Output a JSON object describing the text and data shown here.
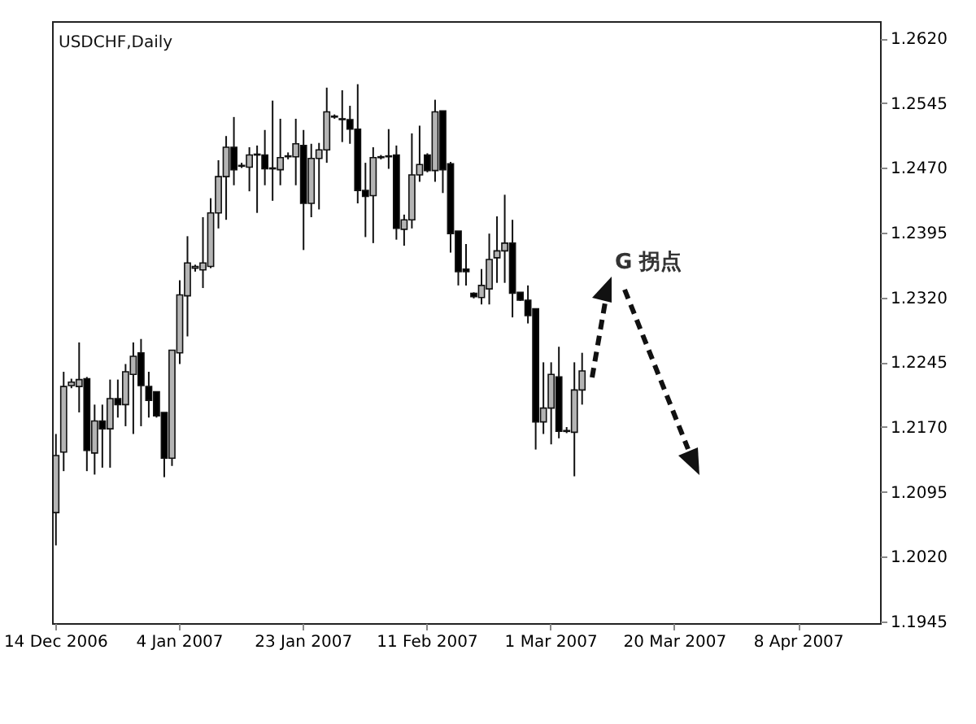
{
  "chart_data": {
    "type": "candlestick",
    "title": "USDCHF,Daily",
    "categories": [
      "14 Dec 2006",
      null,
      null,
      null,
      null,
      null,
      null,
      null,
      null,
      null,
      null,
      null,
      null,
      null,
      null,
      null,
      "4 Jan 2007",
      null,
      null,
      null,
      null,
      null,
      null,
      null,
      null,
      null,
      null,
      null,
      null,
      null,
      null,
      null,
      "23 Jan 2007",
      null,
      null,
      null,
      null,
      null,
      null,
      null,
      null,
      null,
      null,
      null,
      null,
      null,
      null,
      null,
      "11 Feb 2007",
      null,
      null,
      null,
      null,
      null,
      null,
      null,
      null,
      null,
      null,
      null,
      null,
      null,
      null,
      null,
      "1 Mar 2007",
      null,
      null,
      null,
      null,
      null,
      null,
      null,
      null,
      null,
      null,
      null,
      null,
      null,
      null,
      null,
      "20 Mar 2007",
      null,
      null,
      null,
      null,
      null,
      null,
      null,
      null,
      null,
      null,
      null,
      null,
      null,
      null,
      null,
      "8 Apr 2007",
      null,
      null,
      null,
      null,
      null,
      null,
      null,
      null,
      null,
      null
    ],
    "ohlc": [
      [
        1.2071,
        1.2162,
        1.2033,
        1.2137
      ],
      [
        1.2141,
        1.2234,
        1.2119,
        1.2217
      ],
      [
        1.2218,
        1.2226,
        1.2215,
        1.2222
      ],
      [
        1.2217,
        1.2268,
        1.2187,
        1.2225
      ],
      [
        1.2226,
        1.2228,
        1.2119,
        1.2143
      ],
      [
        1.214,
        1.2196,
        1.2115,
        1.2177
      ],
      [
        1.2177,
        1.2196,
        1.2123,
        1.2168
      ],
      [
        1.2168,
        1.2225,
        1.2123,
        1.2203
      ],
      [
        1.2203,
        1.2225,
        1.2181,
        1.2196
      ],
      [
        1.2196,
        1.2243,
        1.2171,
        1.2234
      ],
      [
        1.2231,
        1.2268,
        1.2162,
        1.2252
      ],
      [
        1.2256,
        1.2272,
        1.2171,
        1.2218
      ],
      [
        1.2217,
        1.2234,
        1.2181,
        1.2201
      ],
      [
        1.2211,
        1.2211,
        1.2181,
        1.2183
      ],
      [
        1.2187,
        1.2187,
        1.2112,
        1.2134
      ],
      [
        1.2134,
        1.2259,
        1.2125,
        1.2259
      ],
      [
        1.2256,
        1.234,
        1.2243,
        1.2323
      ],
      [
        1.2322,
        1.2391,
        1.2275,
        1.236
      ],
      [
        1.2354,
        1.2358,
        1.235,
        1.2356
      ],
      [
        1.2352,
        1.2413,
        1.2331,
        1.236
      ],
      [
        1.2356,
        1.2435,
        1.2354,
        1.2418
      ],
      [
        1.2418,
        1.2479,
        1.24,
        1.246
      ],
      [
        1.246,
        1.2507,
        1.241,
        1.2494
      ],
      [
        1.2494,
        1.2529,
        1.245,
        1.2468
      ],
      [
        1.2472,
        1.2476,
        1.247,
        1.2473
      ],
      [
        1.2471,
        1.2494,
        1.2443,
        1.2485
      ],
      [
        1.2485,
        1.2496,
        1.2418,
        1.2486
      ],
      [
        1.2485,
        1.2514,
        1.245,
        1.2469
      ],
      [
        1.2469,
        1.2548,
        1.2432,
        1.247
      ],
      [
        1.2468,
        1.2527,
        1.245,
        1.2482
      ],
      [
        1.2483,
        1.2488,
        1.248,
        1.2484
      ],
      [
        1.2483,
        1.2527,
        1.245,
        1.2498
      ],
      [
        1.2496,
        1.2514,
        1.2375,
        1.2429
      ],
      [
        1.2429,
        1.2498,
        1.2413,
        1.2481
      ],
      [
        1.2481,
        1.2499,
        1.2422,
        1.2491
      ],
      [
        1.2491,
        1.2563,
        1.2476,
        1.2535
      ],
      [
        1.253,
        1.2532,
        1.2527,
        1.2529
      ],
      [
        1.2527,
        1.256,
        1.25,
        1.2526
      ],
      [
        1.2526,
        1.2542,
        1.2498,
        1.2515
      ],
      [
        1.2515,
        1.2567,
        1.2429,
        1.2444
      ],
      [
        1.2444,
        1.2476,
        1.239,
        1.2437
      ],
      [
        1.2438,
        1.2494,
        1.2383,
        1.2482
      ],
      [
        1.2482,
        1.2485,
        1.248,
        1.2483
      ],
      [
        1.2483,
        1.2515,
        1.2469,
        1.2484
      ],
      [
        1.2485,
        1.2496,
        1.2387,
        1.24
      ],
      [
        1.2399,
        1.2416,
        1.238,
        1.241
      ],
      [
        1.241,
        1.251,
        1.24,
        1.2462
      ],
      [
        1.2462,
        1.2519,
        1.2454,
        1.2474
      ],
      [
        1.2485,
        1.2487,
        1.2465,
        1.2467
      ],
      [
        1.2467,
        1.2549,
        1.2454,
        1.2535
      ],
      [
        1.2536,
        1.2536,
        1.2441,
        1.2468
      ],
      [
        1.2475,
        1.2477,
        1.2372,
        1.2394
      ],
      [
        1.2397,
        1.2397,
        1.2334,
        1.235
      ],
      [
        1.2353,
        1.2382,
        1.2334,
        1.235
      ],
      [
        1.2325,
        1.2326,
        1.2319,
        1.2321
      ],
      [
        1.232,
        1.2353,
        1.2312,
        1.2334
      ],
      [
        1.233,
        1.2394,
        1.2312,
        1.2364
      ],
      [
        1.2366,
        1.2414,
        1.2337,
        1.2374
      ],
      [
        1.2374,
        1.2439,
        1.2337,
        1.2383
      ],
      [
        1.2383,
        1.241,
        1.2297,
        1.2325
      ],
      [
        1.2326,
        1.2326,
        1.2316,
        1.2317
      ],
      [
        1.2317,
        1.2334,
        1.229,
        1.2299
      ],
      [
        1.2307,
        1.2307,
        1.2144,
        1.2176
      ],
      [
        1.2176,
        1.2245,
        1.2162,
        1.2192
      ],
      [
        1.2192,
        1.2245,
        1.215,
        1.2231
      ],
      [
        1.2228,
        1.2263,
        1.2157,
        1.2165
      ],
      [
        1.2165,
        1.217,
        1.2163,
        1.2166
      ],
      [
        1.2164,
        1.2245,
        1.2113,
        1.2213
      ],
      [
        1.2213,
        1.2256,
        1.2196,
        1.2235
      ],
      null,
      null,
      null,
      null,
      null,
      null,
      null,
      null,
      null,
      null,
      null,
      null,
      null,
      null,
      null,
      null,
      null,
      null,
      null,
      null,
      null,
      null,
      null,
      null,
      null,
      null,
      null,
      null,
      null,
      null,
      null,
      null,
      null,
      null,
      null,
      null,
      null,
      null
    ],
    "ylim": [
      1.1943,
      1.264
    ],
    "yticks": [
      1.1945,
      {
        "value": 1.202,
        "label": "1.2020"
      },
      1.2095,
      {
        "value": 1.217,
        "label": "1.2170"
      },
      1.2245,
      {
        "value": 1.232,
        "label": "1.2320"
      },
      1.2395,
      {
        "value": 1.247,
        "label": "1.2470"
      },
      1.2545,
      {
        "value": 1.262,
        "label": "1.2620"
      }
    ],
    "annotations": [
      "G 拐点"
    ]
  }
}
